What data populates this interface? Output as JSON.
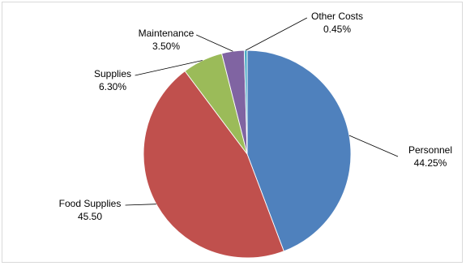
{
  "chart_data": {
    "type": "pie",
    "title": "",
    "start_angle_deg": 0,
    "direction": "clockwise",
    "slices": [
      {
        "label": "Personnel",
        "value": 44.25,
        "value_label": "44.25%",
        "color": "#4f81bd"
      },
      {
        "label": "Food Supplies",
        "value": 45.5,
        "value_label": "45.50",
        "color": "#c0504d"
      },
      {
        "label": "Supplies",
        "value": 6.3,
        "value_label": "6.30%",
        "color": "#9bbb59"
      },
      {
        "label": "Maintenance",
        "value": 3.5,
        "value_label": "3.50%",
        "color": "#8064a2"
      },
      {
        "label": "Other Costs",
        "value": 0.45,
        "value_label": "0.45%",
        "color": "#4bacc6"
      }
    ],
    "legend": "none",
    "data_labels": "outside-with-leader-lines"
  }
}
